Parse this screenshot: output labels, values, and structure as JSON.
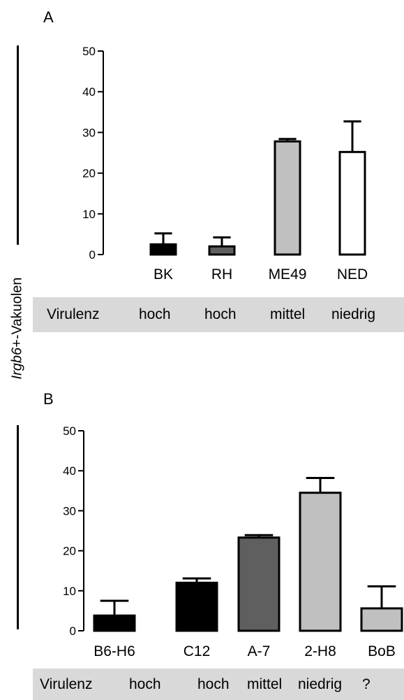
{
  "ylabel_prefix": "Irgb6",
  "ylabel_suffix": "+-Vakuolen",
  "chart_data": [
    {
      "panel": "A",
      "type": "bar",
      "categories": [
        "BK",
        "RH",
        "ME49",
        "NED"
      ],
      "values": [
        2.5,
        2.0,
        27.8,
        25.2
      ],
      "errors": [
        2.7,
        2.2,
        0.6,
        7.5
      ],
      "colors": [
        "#000000",
        "#5f5f5f",
        "#c0c0c0",
        "#ffffff"
      ],
      "ylim": [
        0,
        50
      ],
      "yticks": [
        "0",
        "10",
        "20",
        "30",
        "40",
        "50"
      ],
      "virulence_label": "Virulenz",
      "virulence": [
        "hoch",
        "hoch",
        "mittel",
        "niedrig"
      ]
    },
    {
      "panel": "B",
      "type": "bar",
      "categories": [
        "B6-H6",
        "C12",
        "A-7",
        "2-H8",
        "BoB"
      ],
      "values": [
        3.8,
        12.0,
        23.3,
        34.5,
        5.6
      ],
      "errors": [
        3.7,
        1.1,
        0.6,
        3.7,
        5.5
      ],
      "colors": [
        "#000000",
        "#000000",
        "#5f5f5f",
        "#c0c0c0",
        "#c0c0c0"
      ],
      "ylim": [
        0,
        50
      ],
      "yticks": [
        "0",
        "10",
        "20",
        "30",
        "40",
        "50"
      ],
      "virulence_label": "Virulenz",
      "virulence": [
        "hoch",
        "hoch",
        "mittel",
        "niedrig",
        "?"
      ]
    }
  ]
}
